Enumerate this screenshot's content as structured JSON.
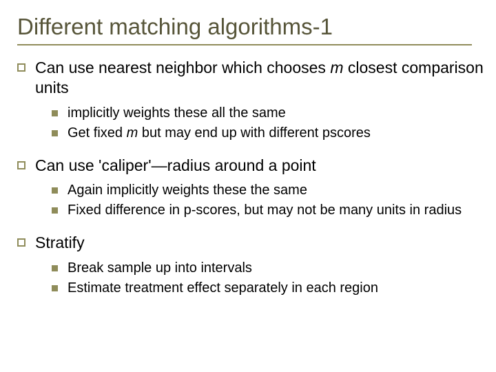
{
  "slide": {
    "title": "Different matching algorithms-1",
    "title_color": "#575539",
    "title_fontsize": 33,
    "underline_color": "#8f8c5a",
    "background_color": "#ffffff",
    "body_fontsize_top": 23,
    "body_fontsize_sub": 20,
    "bullet_outline_color": "#8f8c5a",
    "bullet_fill_color": "#8f8c5a",
    "items": [
      {
        "text_pre": "Can use nearest neighbor which chooses ",
        "text_italic": "m",
        "text_post": " closest comparison units",
        "subs": [
          {
            "pre": "implicitly weights these all the same",
            "italic": "",
            "post": ""
          },
          {
            "pre": "Get fixed ",
            "italic": "m",
            "post": " but may end up with different pscores"
          }
        ]
      },
      {
        "text_pre": "Can use 'caliper'—radius around a point",
        "text_italic": "",
        "text_post": "",
        "subs": [
          {
            "pre": "Again implicitly weights these the same",
            "italic": "",
            "post": ""
          },
          {
            "pre": "Fixed difference in p-scores, but may not be many units in radius",
            "italic": "",
            "post": ""
          }
        ]
      },
      {
        "text_pre": "Stratify",
        "text_italic": "",
        "text_post": "",
        "subs": [
          {
            "pre": "Break sample up into intervals",
            "italic": "",
            "post": ""
          },
          {
            "pre": "Estimate treatment effect separately in each region",
            "italic": "",
            "post": ""
          }
        ]
      }
    ]
  }
}
